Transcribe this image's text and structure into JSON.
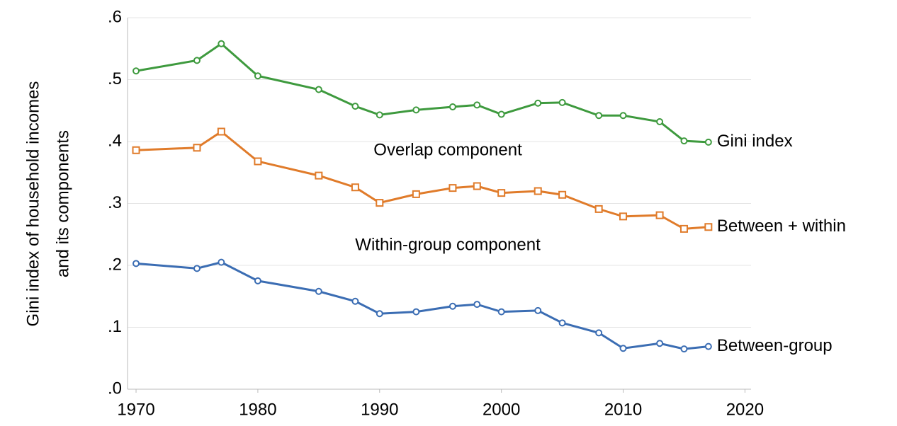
{
  "chart_data": {
    "type": "line",
    "ylabel": [
      "Gini index of household incomes",
      "and its components"
    ],
    "x": [
      1970,
      1975,
      1977,
      1980,
      1985,
      1988,
      1990,
      1993,
      1996,
      1998,
      2000,
      2003,
      2005,
      2008,
      2010,
      2013,
      2015,
      2017
    ],
    "series": [
      {
        "name": "Gini index",
        "color": "#3e9a3e",
        "marker": "circle",
        "values": [
          0.514,
          0.531,
          0.558,
          0.506,
          0.484,
          0.457,
          0.443,
          0.451,
          0.456,
          0.459,
          0.444,
          0.462,
          0.463,
          0.442,
          0.442,
          0.432,
          0.401,
          0.399
        ]
      },
      {
        "name": "Between + within",
        "color": "#e07b2a",
        "marker": "square",
        "values": [
          0.386,
          0.39,
          0.416,
          0.368,
          0.345,
          0.326,
          0.301,
          0.315,
          0.325,
          0.328,
          0.317,
          0.32,
          0.314,
          0.291,
          0.279,
          0.281,
          0.259,
          0.262
        ]
      },
      {
        "name": "Between-group",
        "color": "#3b6db3",
        "marker": "circle",
        "values": [
          0.203,
          0.195,
          0.205,
          0.175,
          0.158,
          0.142,
          0.122,
          0.125,
          0.134,
          0.137,
          0.125,
          0.127,
          0.107,
          0.091,
          0.066,
          0.074,
          0.065,
          0.069
        ]
      }
    ],
    "annotations": [
      {
        "text": "Overlap component",
        "x": 1995.6,
        "y": 0.385
      },
      {
        "text": "Within-group component",
        "x": 1995.6,
        "y": 0.232
      }
    ],
    "xlim": [
      1969.3,
      2020.5
    ],
    "xticks": [
      1970,
      1980,
      1990,
      2000,
      2010,
      2020
    ],
    "ylim": [
      0,
      0.6
    ],
    "yticks": [
      {
        "value": 0,
        "label": ".0"
      },
      {
        "value": 0.1,
        "label": ".1"
      },
      {
        "value": 0.2,
        "label": ".2"
      },
      {
        "value": 0.3,
        "label": ".3"
      },
      {
        "value": 0.4,
        "label": ".4"
      },
      {
        "value": 0.5,
        "label": ".5"
      },
      {
        "value": 0.6,
        "label": ".6"
      }
    ],
    "grid": true,
    "legend": "line-end"
  }
}
